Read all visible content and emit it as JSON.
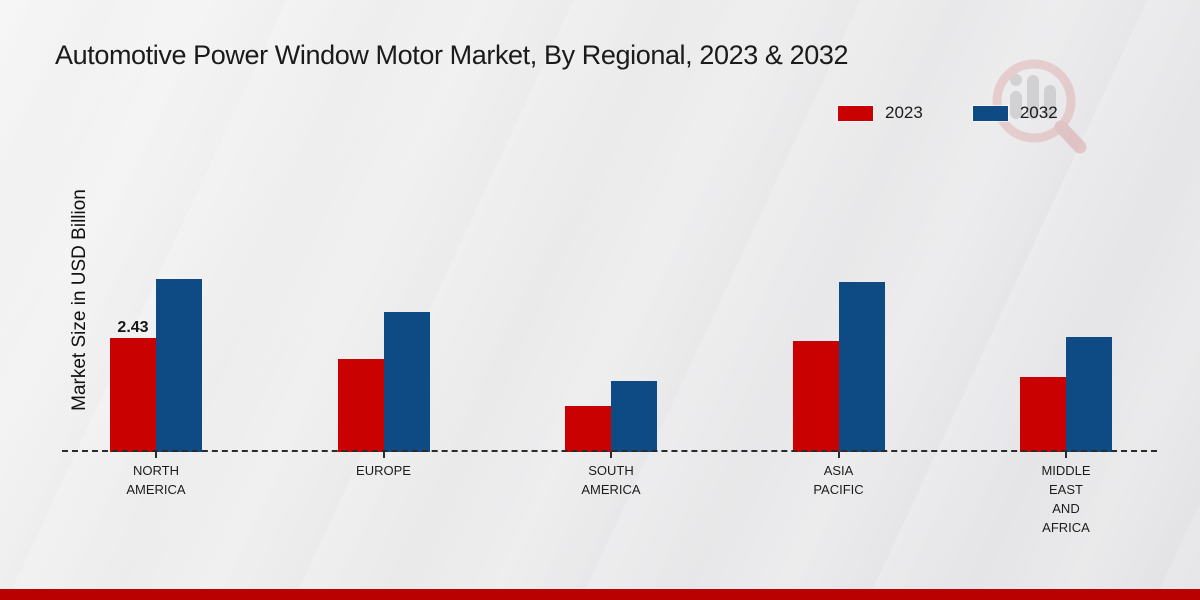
{
  "title": "Automotive Power Window Motor Market, By Regional, 2023 & 2032",
  "y_axis_label": "Market Size in USD Billion",
  "legend": {
    "position": "top-right",
    "items": [
      {
        "label": "2023",
        "color": "#c90201"
      },
      {
        "label": "2032",
        "color": "#0e4a83"
      }
    ]
  },
  "watermark": {
    "name": "market-research-logo",
    "ring_color": "#d98f8f",
    "bars_color": "#9d9da2"
  },
  "footer": {
    "accent_bar_color": "#b80100"
  },
  "chart_data": {
    "type": "bar",
    "title": "Automotive Power Window Motor Market, By Regional, 2023 & 2032",
    "xlabel": "",
    "ylabel": "Market Size in USD Billion",
    "units": "USD Billion",
    "ylim": [
      0,
      4.2
    ],
    "grid": false,
    "baseline_style": "dashed",
    "legend_position": "top-right",
    "categories": [
      "NORTH AMERICA",
      "EUROPE",
      "SOUTH AMERICA",
      "ASIA PACIFIC",
      "MIDDLE EAST AND AFRICA"
    ],
    "category_lines": [
      [
        "NORTH",
        "AMERICA"
      ],
      [
        "EUROPE"
      ],
      [
        "SOUTH",
        "AMERICA"
      ],
      [
        "ASIA",
        "PACIFIC"
      ],
      [
        "MIDDLE",
        "EAST",
        "AND",
        "AFRICA"
      ]
    ],
    "series": [
      {
        "name": "2023",
        "color": "#c90201",
        "values": [
          2.43,
          1.97,
          0.98,
          2.36,
          1.6
        ]
      },
      {
        "name": "2032",
        "color": "#0e4a83",
        "values": [
          3.69,
          2.97,
          1.52,
          3.61,
          2.45
        ]
      }
    ],
    "data_labels": [
      {
        "series_index": 0,
        "category_index": 0,
        "text": "2.43"
      }
    ]
  }
}
